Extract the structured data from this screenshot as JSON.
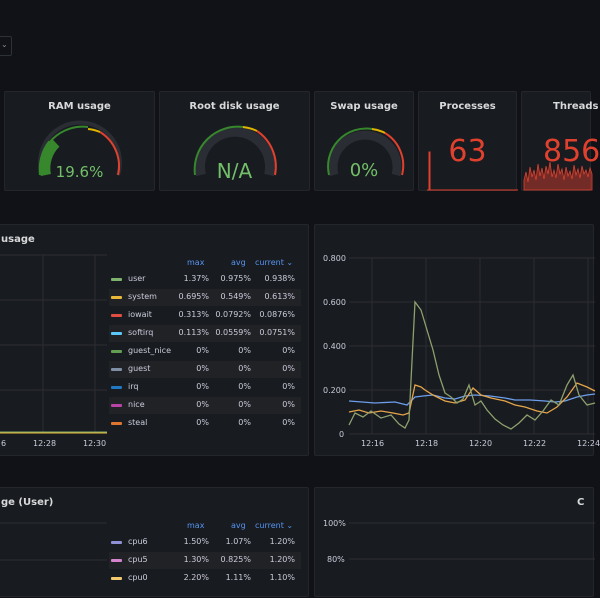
{
  "top_dropdown": {
    "chevron": "chevron-down-icon"
  },
  "stats": {
    "ram": {
      "title": "RAM usage",
      "value": "19.6%",
      "fraction": 0.196,
      "color": "#37872d"
    },
    "root_disk": {
      "title": "Root disk usage",
      "value": "N/A",
      "fraction": 0.0,
      "color": "#37872d"
    },
    "swap": {
      "title": "Swap usage",
      "value": "0%",
      "fraction": 0.0,
      "color": "#37872d"
    },
    "processes": {
      "title": "Processes",
      "value": "63",
      "color": "#e0412e"
    },
    "threads": {
      "title": "Threads",
      "value": "856",
      "color": "#e0412e"
    }
  },
  "cpu_panel": {
    "title": "usage",
    "legend_headers": {
      "max": "max",
      "avg": "avg",
      "current": "current"
    },
    "rows": [
      {
        "name": "user",
        "max": "1.37%",
        "avg": "0.975%",
        "current": "0.938%",
        "color": "#7eb26d"
      },
      {
        "name": "system",
        "max": "0.695%",
        "avg": "0.549%",
        "current": "0.613%",
        "color": "#eab839"
      },
      {
        "name": "iowait",
        "max": "0.313%",
        "avg": "0.0792%",
        "current": "0.0876%",
        "color": "#e24d42"
      },
      {
        "name": "softirq",
        "max": "0.113%",
        "avg": "0.0559%",
        "current": "0.0751%",
        "color": "#5ac8fa"
      },
      {
        "name": "guest_nice",
        "max": "0%",
        "avg": "0%",
        "current": "0%",
        "color": "#629e51"
      },
      {
        "name": "guest",
        "max": "0%",
        "avg": "0%",
        "current": "0%",
        "color": "#7f8fa6"
      },
      {
        "name": "irq",
        "max": "0%",
        "avg": "0%",
        "current": "0%",
        "color": "#1f78c1"
      },
      {
        "name": "nice",
        "max": "0%",
        "avg": "0%",
        "current": "0%",
        "color": "#ba43a9"
      },
      {
        "name": "steal",
        "max": "0%",
        "avg": "0%",
        "current": "0%",
        "color": "#e0752d"
      }
    ],
    "x_ticks": [
      "6",
      "12:28",
      "12:30"
    ]
  },
  "load_panel": {
    "y_ticks": [
      "0.800",
      "0.600",
      "0.400",
      "0.200",
      "0"
    ],
    "x_ticks": [
      "12:16",
      "12:18",
      "12:20",
      "12:22",
      "12:24"
    ]
  },
  "cpu_user_panel": {
    "title": "ge (User)",
    "legend_headers": {
      "max": "max",
      "avg": "avg",
      "current": "current"
    },
    "rows": [
      {
        "name": "cpu6",
        "max": "1.50%",
        "avg": "1.07%",
        "current": "1.20%",
        "color": "#8f8fd6"
      },
      {
        "name": "cpu5",
        "max": "1.30%",
        "avg": "0.825%",
        "current": "1.20%",
        "color": "#d683ce"
      },
      {
        "name": "cpu0",
        "max": "2.20%",
        "avg": "1.11%",
        "current": "1.10%",
        "color": "#f2c96d"
      }
    ]
  },
  "right_bottom_panel": {
    "title": "C",
    "y_ticks": [
      "100%",
      "80%"
    ]
  }
}
